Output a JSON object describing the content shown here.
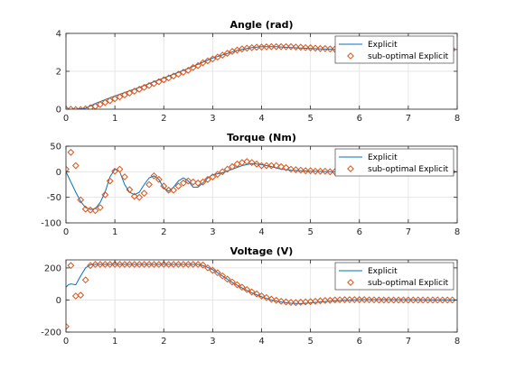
{
  "colors": {
    "explicit": "#0072BD",
    "suboptimal": "#D95319",
    "grid": "#E6E6E6",
    "axis": "#262626"
  },
  "legend": {
    "explicit_label": "Explicit",
    "suboptimal_label": "sub-optimal Explicit",
    "location": "top-right"
  },
  "chart_data": [
    {
      "type": "line",
      "title": "Angle (rad)",
      "xlabel": "",
      "ylabel": "",
      "xlim": [
        0,
        8
      ],
      "ylim": [
        0,
        4
      ],
      "xticks": [
        0,
        1,
        2,
        3,
        4,
        5,
        6,
        7,
        8
      ],
      "yticks": [
        0,
        2,
        4
      ],
      "grid": true,
      "series": [
        {
          "name": "Explicit",
          "style": "line",
          "x": [
            0,
            0.2,
            0.4,
            0.6,
            0.8,
            1.0,
            1.5,
            2.0,
            2.5,
            3.0,
            3.5,
            3.8,
            4.0,
            4.3,
            4.6,
            5.0,
            5.5,
            6.0,
            6.5,
            7.0,
            7.5,
            8.0
          ],
          "y": [
            0,
            0,
            0.05,
            0.3,
            0.5,
            0.7,
            1.15,
            1.65,
            2.15,
            2.7,
            3.1,
            3.25,
            3.3,
            3.3,
            3.25,
            3.2,
            3.15,
            3.15,
            3.15,
            3.15,
            3.15,
            3.15
          ]
        },
        {
          "name": "sub-optimal Explicit",
          "style": "marker",
          "x": [
            0,
            0.1,
            0.2,
            0.3,
            0.4,
            0.5,
            0.6,
            0.7,
            0.8,
            0.9,
            1.0,
            1.1,
            1.2,
            1.3,
            1.4,
            1.5,
            1.6,
            1.7,
            1.8,
            1.9,
            2.0,
            2.1,
            2.2,
            2.3,
            2.4,
            2.5,
            2.6,
            2.7,
            2.8,
            2.9,
            3.0,
            3.1,
            3.2,
            3.3,
            3.4,
            3.5,
            3.6,
            3.7,
            3.8,
            3.9,
            4.0,
            4.1,
            4.2,
            4.3,
            4.4,
            4.5,
            4.6,
            4.7,
            4.8,
            4.9,
            5.0,
            5.1,
            5.2,
            5.3,
            5.4,
            5.5,
            5.6,
            5.7,
            5.8,
            5.9,
            6.0,
            6.1,
            6.2,
            6.3,
            6.4,
            6.5,
            6.6,
            6.7,
            6.8,
            6.9,
            7.0,
            7.1,
            7.2,
            7.3,
            7.4,
            7.5,
            7.6,
            7.7,
            7.8,
            7.9
          ],
          "y": [
            0,
            0,
            -0.02,
            -0.02,
            0.02,
            0.08,
            0.15,
            0.25,
            0.35,
            0.45,
            0.55,
            0.65,
            0.75,
            0.85,
            0.95,
            1.05,
            1.15,
            1.25,
            1.35,
            1.45,
            1.55,
            1.65,
            1.75,
            1.85,
            1.95,
            2.05,
            2.2,
            2.3,
            2.45,
            2.55,
            2.65,
            2.75,
            2.85,
            2.95,
            3.05,
            3.12,
            3.18,
            3.22,
            3.25,
            3.27,
            3.28,
            3.29,
            3.3,
            3.3,
            3.3,
            3.3,
            3.3,
            3.28,
            3.27,
            3.25,
            3.24,
            3.22,
            3.2,
            3.2,
            3.18,
            3.17,
            3.17,
            3.16,
            3.16,
            3.15,
            3.15,
            3.15,
            3.15,
            3.15,
            3.15,
            3.15,
            3.15,
            3.15,
            3.15,
            3.15,
            3.15,
            3.15,
            3.15,
            3.15,
            3.15,
            3.15,
            3.15,
            3.15,
            3.15,
            3.15
          ]
        }
      ]
    },
    {
      "type": "line",
      "title": "Torque (Nm)",
      "xlabel": "",
      "ylabel": "",
      "xlim": [
        0,
        8
      ],
      "ylim": [
        -100,
        50
      ],
      "xticks": [
        0,
        1,
        2,
        3,
        4,
        5,
        6,
        7,
        8
      ],
      "yticks": [
        -100,
        -50,
        0,
        50
      ],
      "grid": true,
      "series": [
        {
          "name": "Explicit",
          "style": "line",
          "x": [
            0,
            0.05,
            0.1,
            0.2,
            0.3,
            0.4,
            0.5,
            0.6,
            0.7,
            0.8,
            0.9,
            1.0,
            1.1,
            1.2,
            1.3,
            1.4,
            1.5,
            1.6,
            1.7,
            1.8,
            1.9,
            2.0,
            2.1,
            2.2,
            2.3,
            2.4,
            2.5,
            2.6,
            2.7,
            2.8,
            2.9,
            3.0,
            3.2,
            3.4,
            3.6,
            3.8,
            4.0,
            4.2,
            4.4,
            4.6,
            4.8,
            5.0,
            5.5,
            6.0,
            6.5,
            7.0,
            7.5,
            8.0
          ],
          "y": [
            0,
            -10,
            -20,
            -40,
            -58,
            -70,
            -74,
            -72,
            -60,
            -40,
            -10,
            5,
            0,
            -25,
            -40,
            -45,
            -40,
            -25,
            -12,
            -8,
            -15,
            -32,
            -38,
            -30,
            -18,
            -12,
            -18,
            -30,
            -30,
            -22,
            -12,
            -6,
            -2,
            5,
            12,
            16,
            14,
            10,
            5,
            3,
            2,
            1,
            0,
            0,
            0,
            0,
            0,
            0
          ]
        },
        {
          "name": "sub-optimal Explicit",
          "style": "marker",
          "x": [
            0,
            0.1,
            0.2,
            0.3,
            0.4,
            0.5,
            0.6,
            0.7,
            0.8,
            0.9,
            1.0,
            1.1,
            1.2,
            1.3,
            1.4,
            1.5,
            1.6,
            1.7,
            1.8,
            1.9,
            2.0,
            2.1,
            2.2,
            2.3,
            2.4,
            2.5,
            2.6,
            2.7,
            2.8,
            2.9,
            3.0,
            3.1,
            3.2,
            3.3,
            3.4,
            3.5,
            3.6,
            3.7,
            3.8,
            3.9,
            4.0,
            4.1,
            4.2,
            4.3,
            4.4,
            4.5,
            4.6,
            4.7,
            4.8,
            4.9,
            5.0,
            5.1,
            5.2,
            5.3,
            5.4,
            5.5,
            5.6,
            5.7,
            5.8,
            5.9,
            6.0,
            6.1,
            6.2,
            6.3,
            6.4,
            6.5,
            6.6,
            6.7,
            6.8,
            6.9,
            7.0,
            7.1,
            7.2,
            7.3,
            7.4,
            7.5,
            7.6,
            7.7,
            7.8,
            7.9
          ],
          "y": [
            5,
            38,
            12,
            -55,
            -73,
            -75,
            -76,
            -70,
            -45,
            -18,
            1,
            5,
            -10,
            -35,
            -48,
            -50,
            -42,
            -25,
            -8,
            -15,
            -28,
            -36,
            -36,
            -28,
            -22,
            -18,
            -20,
            -22,
            -20,
            -15,
            -10,
            -5,
            0,
            5,
            10,
            15,
            18,
            20,
            18,
            15,
            12,
            12,
            12,
            12,
            10,
            8,
            5,
            4,
            3,
            2,
            2,
            1,
            1,
            1,
            0,
            0,
            0,
            0,
            0,
            0,
            0,
            0,
            0,
            0,
            0,
            0,
            0,
            0,
            0,
            0,
            0,
            0,
            0,
            0,
            0,
            0,
            0,
            0,
            0,
            0
          ]
        }
      ]
    },
    {
      "type": "line",
      "title": "Voltage (V)",
      "xlabel": "",
      "ylabel": "",
      "xlim": [
        0,
        8
      ],
      "ylim": [
        -200,
        250
      ],
      "xticks": [
        0,
        1,
        2,
        3,
        4,
        5,
        6,
        7,
        8
      ],
      "yticks": [
        -200,
        0,
        200
      ],
      "grid": true,
      "series": [
        {
          "name": "Explicit",
          "style": "line",
          "x": [
            0,
            0.05,
            0.1,
            0.2,
            0.3,
            0.4,
            0.5,
            0.6,
            0.8,
            1.0,
            1.5,
            2.0,
            2.5,
            2.7,
            2.8,
            3.0,
            3.2,
            3.4,
            3.6,
            3.8,
            4.0,
            4.2,
            4.4,
            4.6,
            4.8,
            5.0,
            5.2,
            5.5,
            6.0,
            6.5,
            7.0,
            7.5,
            8.0
          ],
          "y": [
            80,
            95,
            100,
            95,
            150,
            200,
            220,
            222,
            222,
            222,
            222,
            222,
            222,
            222,
            215,
            190,
            150,
            110,
            75,
            45,
            20,
            0,
            -12,
            -20,
            -22,
            -18,
            -12,
            -5,
            2,
            2,
            1,
            0,
            0
          ]
        },
        {
          "name": "sub-optimal Explicit",
          "style": "marker",
          "x": [
            0,
            0.1,
            0.2,
            0.3,
            0.4,
            0.5,
            0.6,
            0.7,
            0.8,
            0.9,
            1.0,
            1.1,
            1.2,
            1.3,
            1.4,
            1.5,
            1.6,
            1.7,
            1.8,
            1.9,
            2.0,
            2.1,
            2.2,
            2.3,
            2.4,
            2.5,
            2.6,
            2.7,
            2.8,
            2.9,
            3.0,
            3.1,
            3.2,
            3.3,
            3.4,
            3.5,
            3.6,
            3.7,
            3.8,
            3.9,
            4.0,
            4.1,
            4.2,
            4.3,
            4.4,
            4.5,
            4.6,
            4.7,
            4.8,
            4.9,
            5.0,
            5.1,
            5.2,
            5.3,
            5.4,
            5.5,
            5.6,
            5.7,
            5.8,
            5.9,
            6.0,
            6.1,
            6.2,
            6.3,
            6.4,
            6.5,
            6.6,
            6.7,
            6.8,
            6.9,
            7.0,
            7.1,
            7.2,
            7.3,
            7.4,
            7.5,
            7.6,
            7.7,
            7.8,
            7.9
          ],
          "y": [
            -165,
            215,
            25,
            30,
            125,
            215,
            222,
            222,
            222,
            222,
            222,
            222,
            222,
            222,
            222,
            222,
            222,
            222,
            222,
            222,
            222,
            222,
            222,
            222,
            222,
            222,
            222,
            222,
            218,
            200,
            185,
            170,
            150,
            130,
            112,
            95,
            80,
            65,
            50,
            38,
            25,
            15,
            5,
            -2,
            -8,
            -12,
            -15,
            -16,
            -14,
            -12,
            -10,
            -8,
            -5,
            -3,
            -2,
            0,
            1,
            2,
            2,
            2,
            2,
            2,
            1,
            1,
            0,
            0,
            0,
            0,
            0,
            0,
            0,
            0,
            0,
            0,
            0,
            0,
            0,
            0,
            0,
            0
          ]
        }
      ]
    }
  ]
}
